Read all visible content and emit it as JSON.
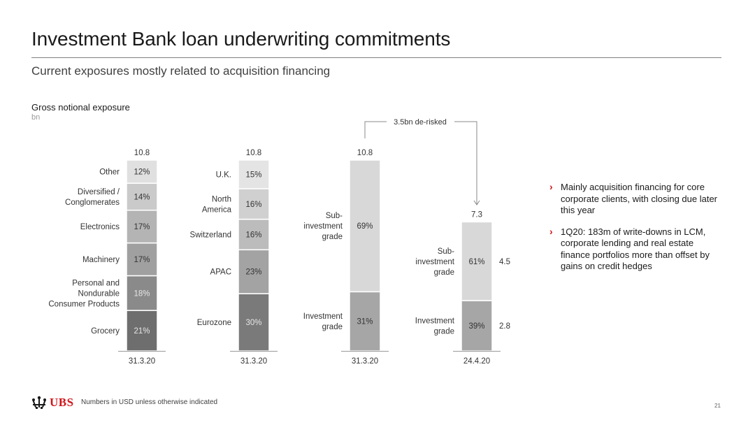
{
  "page": {
    "title": "Investment Bank loan underwriting commitments",
    "subtitle": "Current exposures mostly related to acquisition financing",
    "page_number": "21"
  },
  "chart_data": {
    "type": "bar",
    "title": "Gross notional exposure",
    "unit": "bn",
    "annotation": "3.5bn de-risked",
    "bars": [
      {
        "category": "31.3.20",
        "total": "10.8",
        "segments": [
          {
            "name": "Grocery",
            "share": 21,
            "label": "21%"
          },
          {
            "name": "Personal and\nNondurable\nConsumer Products",
            "share": 18,
            "label": "18%"
          },
          {
            "name": "Machinery",
            "share": 17,
            "label": "17%"
          },
          {
            "name": "Electronics",
            "share": 17,
            "label": "17%"
          },
          {
            "name": "Diversified /\nConglomerates",
            "share": 14,
            "label": "14%"
          },
          {
            "name": "Other",
            "share": 12,
            "label": "12%"
          }
        ]
      },
      {
        "category": "31.3.20",
        "total": "10.8",
        "segments": [
          {
            "name": "Eurozone",
            "share": 30,
            "label": "30%"
          },
          {
            "name": "APAC",
            "share": 23,
            "label": "23%"
          },
          {
            "name": "Switzerland",
            "share": 16,
            "label": "16%"
          },
          {
            "name": "North\nAmerica",
            "share": 16,
            "label": "16%"
          },
          {
            "name": "U.K.",
            "share": 15,
            "label": "15%"
          }
        ]
      },
      {
        "category": "31.3.20",
        "total": "10.8",
        "segments": [
          {
            "name": "Investment\ngrade",
            "share": 31,
            "label": "31%"
          },
          {
            "name": "Sub-\ninvestment\ngrade",
            "share": 69,
            "label": "69%"
          }
        ]
      },
      {
        "category": "24.4.20",
        "total": "7.3",
        "segments": [
          {
            "name": "Investment\ngrade",
            "share": 39,
            "label": "39%",
            "value": "2.8"
          },
          {
            "name": "Sub-\ninvestment\ngrade",
            "share": 61,
            "label": "61%",
            "value": "4.5"
          }
        ]
      }
    ]
  },
  "colors": {
    "accent": "#d0151b",
    "bar1": [
      "#6e6e6e",
      "#8a8a8a",
      "#a0a0a0",
      "#b4b4b4",
      "#cacaca",
      "#e0e0e0"
    ],
    "bar2": [
      "#7a7a7a",
      "#a3a3a3",
      "#bcbcbc",
      "#d0d0d0",
      "#e4e4e4"
    ],
    "bar_ig": "#a6a6a6",
    "bar_sub": "#d8d8d8"
  },
  "bullets": [
    "Mainly acquisition financing for core corporate clients, with closing due later this year",
    "1Q20: 183m of write-downs in LCM, corporate lending and real estate finance portfolios more than offset by gains on credit hedges"
  ],
  "footer": {
    "logo_text": "UBS",
    "note": "Numbers in USD unless otherwise indicated"
  }
}
